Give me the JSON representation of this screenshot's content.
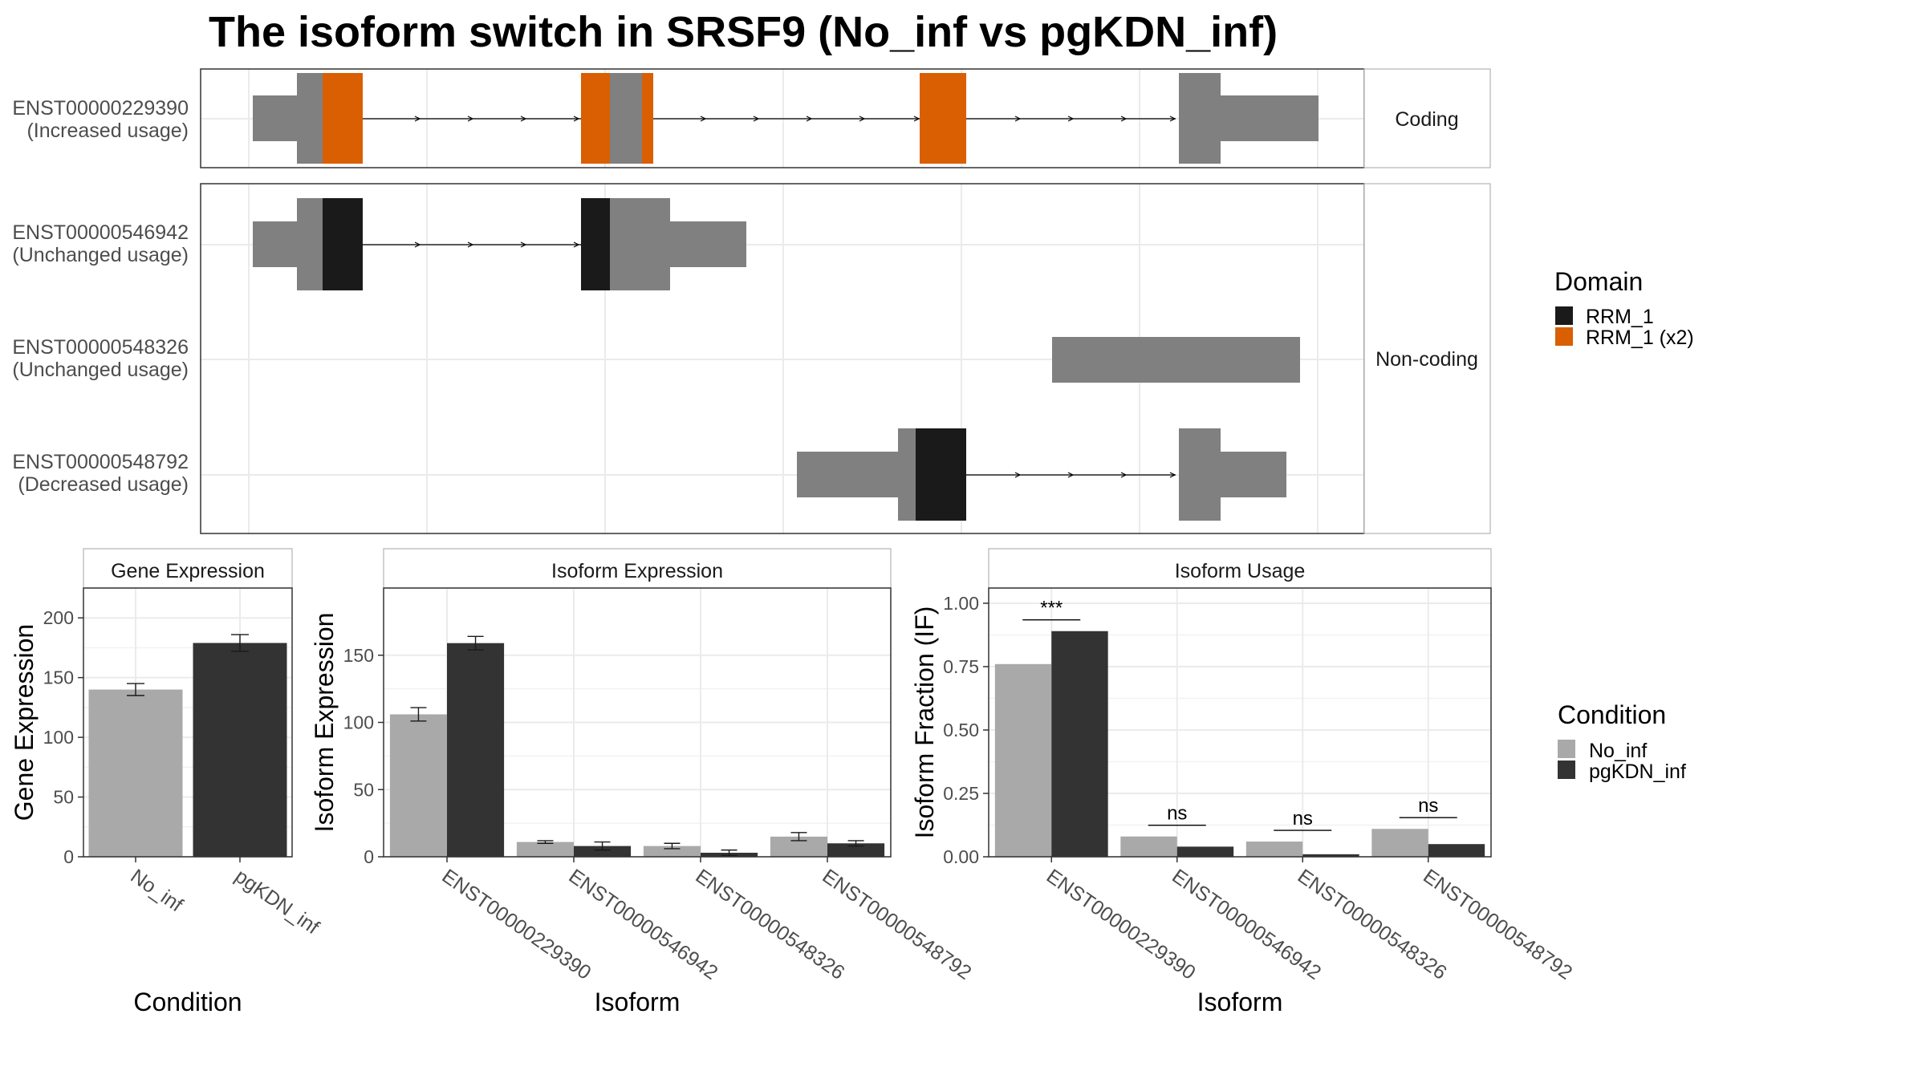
{
  "title": "The isoform switch in SRSF9 (No_inf vs pgKDN_inf)",
  "colors": {
    "exon": "#808080",
    "rrm1": "#1a1a1a",
    "rrm1_x2": "#d95f02",
    "no_inf": "#a9a9a9",
    "pgkdn_inf": "#333333",
    "grid": "#ebebeb",
    "panel_border": "#333333",
    "strip_border": "#b3b3b3"
  },
  "structure": {
    "strip_coding": "Coding",
    "strip_noncoding": "Non-coding",
    "transcripts": [
      {
        "id": "ENST00000229390",
        "usage": "(Increased usage)",
        "group": "coding"
      },
      {
        "id": "ENST00000546942",
        "usage": "(Unchanged usage)",
        "group": "noncoding"
      },
      {
        "id": "ENST00000548326",
        "usage": "(Unchanged usage)",
        "group": "noncoding"
      },
      {
        "id": "ENST00000548792",
        "usage": "(Decreased usage)",
        "group": "noncoding"
      }
    ]
  },
  "legend_domain": {
    "title": "Domain",
    "items": [
      {
        "label": "RRM_1",
        "color": "#1a1a1a"
      },
      {
        "label": "RRM_1 (x2)",
        "color": "#d95f02"
      }
    ]
  },
  "legend_condition": {
    "title": "Condition",
    "items": [
      {
        "label": "No_inf",
        "color": "#a9a9a9"
      },
      {
        "label": "pgKDN_inf",
        "color": "#333333"
      }
    ]
  },
  "chart_data": [
    {
      "type": "bar",
      "strip": "Gene Expression",
      "xlabel": "Condition",
      "ylabel": "Gene Expression",
      "ylim": [
        0,
        225
      ],
      "yticks": [
        0,
        50,
        100,
        150,
        200
      ],
      "categories": [
        "No_inf",
        "pgKDN_inf"
      ],
      "values": [
        140,
        179
      ],
      "errors": [
        5,
        7
      ]
    },
    {
      "type": "bar",
      "strip": "Isoform Expression",
      "xlabel": "Isoform",
      "ylabel": "Isoform Expression",
      "ylim": [
        0,
        200
      ],
      "yticks": [
        0,
        50,
        100,
        150
      ],
      "categories": [
        "ENST00000229390",
        "ENST00000546942",
        "ENST00000548326",
        "ENST00000548792"
      ],
      "series": [
        {
          "name": "No_inf",
          "values": [
            106,
            11,
            8,
            15
          ],
          "errors": [
            5,
            1,
            2,
            3
          ]
        },
        {
          "name": "pgKDN_inf",
          "values": [
            159,
            8,
            3,
            10
          ],
          "errors": [
            5,
            3,
            2,
            2
          ]
        }
      ]
    },
    {
      "type": "bar",
      "strip": "Isoform Usage",
      "xlabel": "Isoform",
      "ylabel": "Isoform Fraction (IF)",
      "ylim": [
        0,
        1.06
      ],
      "yticks": [
        "0.00",
        "0.25",
        "0.50",
        "0.75",
        "1.00"
      ],
      "categories": [
        "ENST00000229390",
        "ENST00000546942",
        "ENST00000548326",
        "ENST00000548792"
      ],
      "series": [
        {
          "name": "No_inf",
          "values": [
            0.76,
            0.08,
            0.06,
            0.11
          ]
        },
        {
          "name": "pgKDN_inf",
          "values": [
            0.89,
            0.04,
            0.01,
            0.05
          ]
        }
      ],
      "significance": [
        "***",
        "ns",
        "ns",
        "ns"
      ]
    }
  ]
}
